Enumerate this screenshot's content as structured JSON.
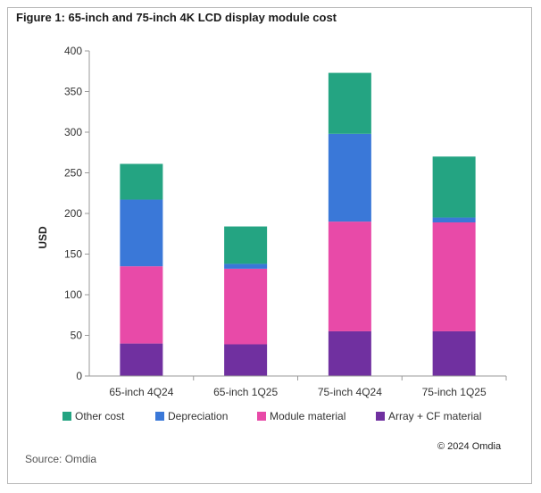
{
  "figure_title": "Figure 1: 65-inch and 75-inch 4K LCD display module cost",
  "source": "Source: Omdia",
  "copyright": "© 2024 Omdia",
  "chart_data": {
    "type": "bar",
    "stacked": true,
    "title": "",
    "xlabel": "",
    "ylabel": "USD",
    "ylim": [
      0,
      400
    ],
    "yticks": [
      0,
      50,
      100,
      150,
      200,
      250,
      300,
      350,
      400
    ],
    "categories": [
      "65-inch 4Q24",
      "65-inch 1Q25",
      "75-inch 4Q24",
      "75-inch 1Q25"
    ],
    "series": [
      {
        "name": "Array + CF material",
        "color": "#7030a0",
        "values": [
          40,
          39,
          55,
          55
        ]
      },
      {
        "name": "Module material",
        "color": "#e84aa8",
        "values": [
          95,
          93,
          135,
          134
        ]
      },
      {
        "name": "Depreciation",
        "color": "#3a78d8",
        "values": [
          82,
          6,
          108,
          6
        ]
      },
      {
        "name": "Other cost",
        "color": "#24a482",
        "values": [
          44,
          46,
          75,
          75
        ]
      }
    ],
    "legend": {
      "position": "bottom",
      "order": [
        "Other cost",
        "Depreciation",
        "Module material",
        "Array + CF material"
      ]
    },
    "grid": false
  }
}
